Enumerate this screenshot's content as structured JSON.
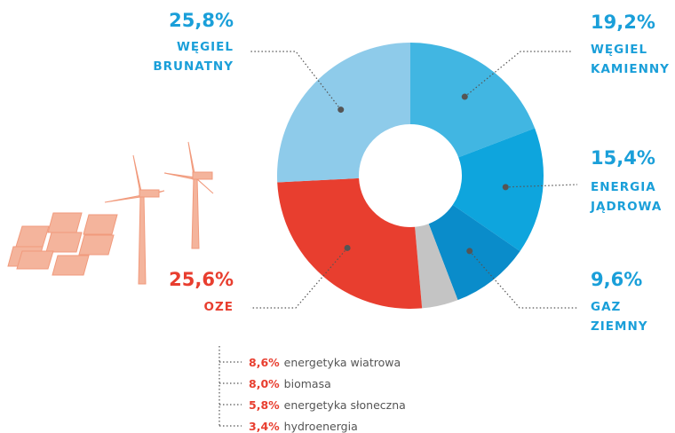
{
  "chart_data": {
    "type": "donut",
    "categories": [
      "WĘGIEL\nKAMIENNY",
      "ENERGIA\nJĄDROWA",
      "GAZ\nZIEMNY",
      null,
      "OZE",
      "WĘGIEL\nBRUNATNY"
    ],
    "values": [
      19.2,
      15.4,
      9.6,
      4.4,
      25.6,
      25.8
    ],
    "value_labels": [
      "19,2%",
      "15,4%",
      "9,6%",
      null,
      "25,6%",
      "25,8%"
    ],
    "colors": [
      "#41b6e2",
      "#0ea5dd",
      "#0a8cca",
      "#c4c4c4",
      "#e83e2f",
      "#8ecbea"
    ],
    "label_colors": [
      "#1a9fd9",
      "#1a9fd9",
      "#1a9fd9",
      null,
      "#e83e2f",
      "#1a9fd9"
    ],
    "breakdown": {
      "categories": [
        "energetyka wiatrowa",
        "biomasa",
        "energetyka słoneczna",
        "hydroenergia"
      ],
      "values": [
        8.6,
        8.0,
        5.8,
        3.4
      ],
      "value_labels": [
        "8,6%",
        "8,0%",
        "5,8%",
        "3,4%"
      ]
    }
  }
}
